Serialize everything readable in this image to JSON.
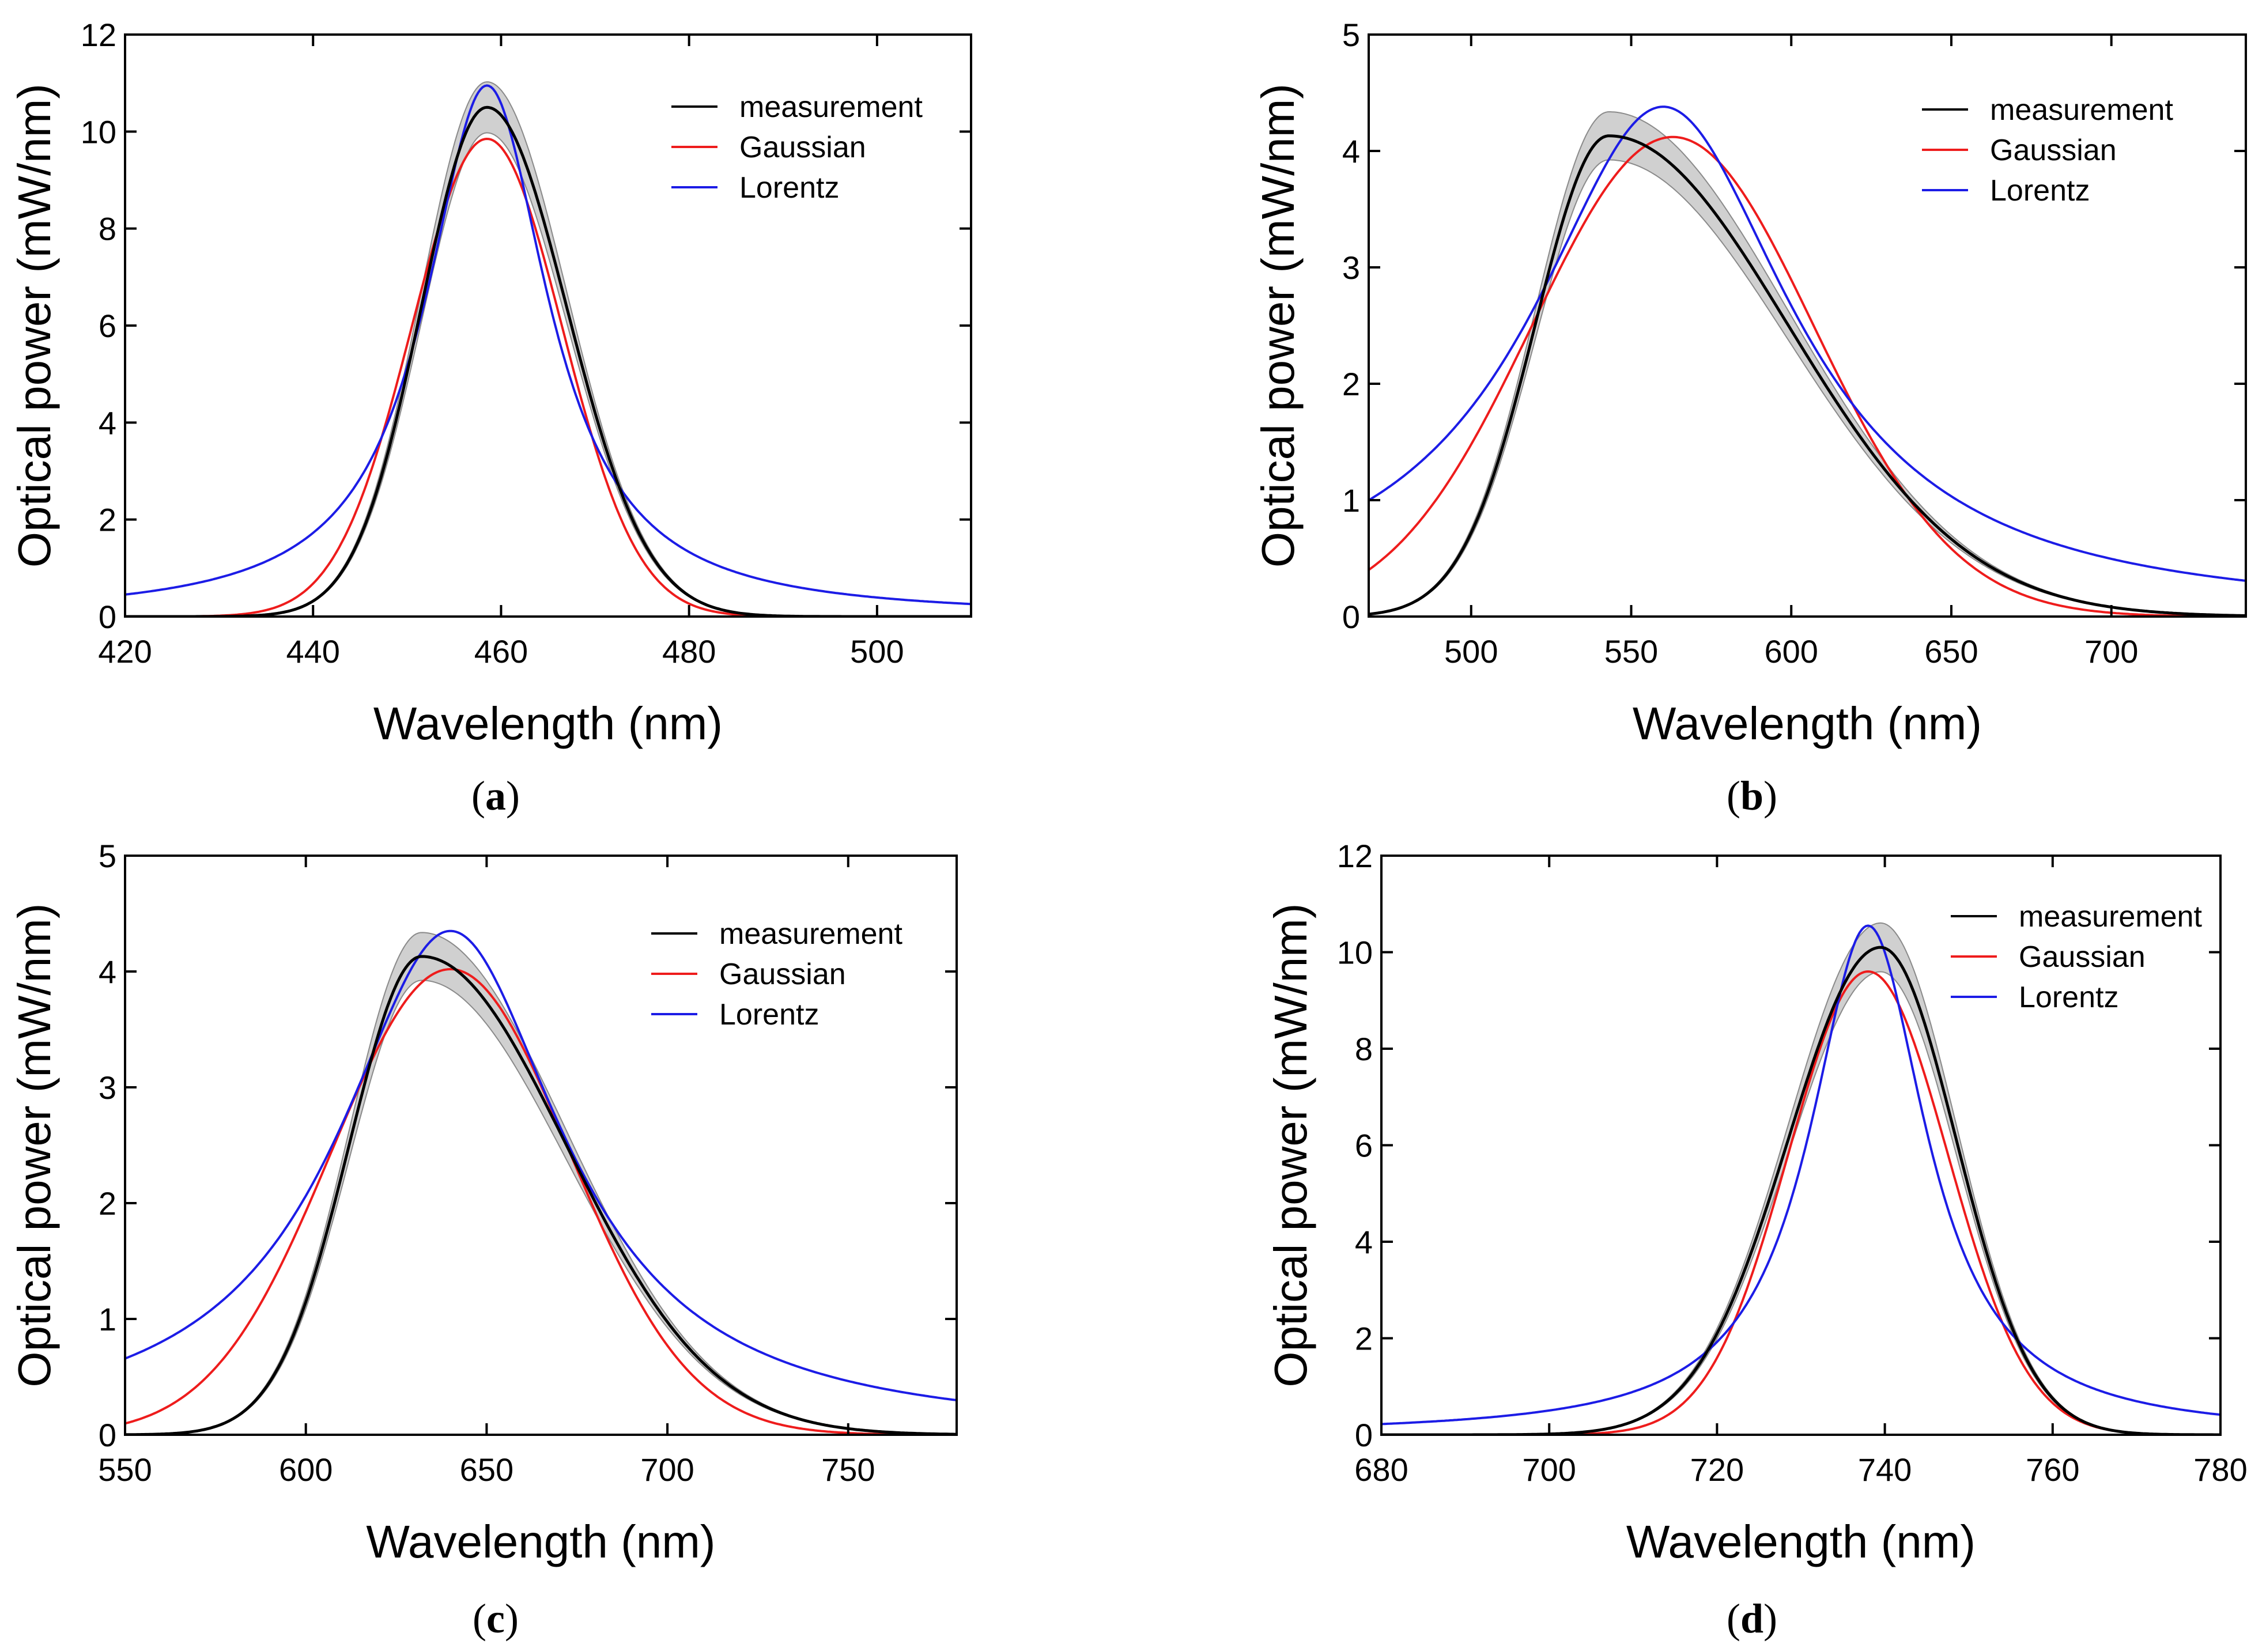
{
  "colors": {
    "measurement": "#000000",
    "gaussian": "#ee1c1c",
    "lorentz": "#1c1ce6",
    "band_fill": "#d0d0d0",
    "band_edge": "#8a8a8a"
  },
  "chart_data": [
    {
      "type": "line",
      "panel": "a",
      "label_letter": "a",
      "label_open": "(",
      "label_close": ")",
      "xlabel": "Wavelength (nm)",
      "ylabel": "Optical power (mW/nm)",
      "xlim": [
        420,
        510
      ],
      "ylim": [
        0,
        12
      ],
      "xticks": [
        420,
        440,
        460,
        480,
        500
      ],
      "yticks": [
        0,
        2,
        4,
        6,
        8,
        10,
        12
      ],
      "legend": [
        "measurement",
        "Gaussian",
        "Lorentz"
      ],
      "legend_position": "top-right",
      "series": [
        {
          "name": "measurement",
          "model": "asymmetric-gaussian",
          "peak_wavelength": 458.5,
          "peak_power": 10.5,
          "sigma_left": 7.0,
          "sigma_right": 8.5,
          "band_half_width_fraction": 0.05
        },
        {
          "name": "Gaussian",
          "model": "gaussian",
          "center": 458.5,
          "peak_power": 9.85,
          "sigma": 8.0
        },
        {
          "name": "Lorentz",
          "model": "lorentzian",
          "center": 458.5,
          "peak_power": 10.95,
          "hwhm": 8.0
        }
      ]
    },
    {
      "type": "line",
      "panel": "b",
      "label_letter": "b",
      "label_open": "(",
      "label_close": ")",
      "xlabel": "Wavelength (nm)",
      "ylabel": "Optical power (mW/nm)",
      "xlim": [
        468,
        742
      ],
      "ylim": [
        0,
        5
      ],
      "xticks": [
        500,
        550,
        600,
        650,
        700
      ],
      "yticks": [
        0,
        1,
        2,
        3,
        4,
        5
      ],
      "legend": [
        "measurement",
        "Gaussian",
        "Lorentz"
      ],
      "legend_position": "top-right",
      "series": [
        {
          "name": "measurement",
          "model": "asymmetric-gaussian",
          "peak_wavelength": 543,
          "peak_power": 4.13,
          "sigma_left": 23,
          "sigma_right": 56,
          "band_half_width_fraction": 0.05
        },
        {
          "name": "Gaussian",
          "model": "gaussian",
          "center": 563,
          "peak_power": 4.12,
          "sigma": 44
        },
        {
          "name": "Lorentz",
          "model": "lorentzian",
          "center": 560,
          "peak_power": 4.38,
          "hwhm": 50
        }
      ]
    },
    {
      "type": "line",
      "panel": "c",
      "label_letter": "c",
      "label_open": "(",
      "label_close": ")",
      "xlabel": "Wavelength (nm)",
      "ylabel": "Optical power (mW/nm)",
      "xlim": [
        550,
        780
      ],
      "ylim": [
        0,
        5
      ],
      "xticks": [
        550,
        600,
        650,
        700,
        750
      ],
      "yticks": [
        0,
        1,
        2,
        3,
        4,
        5
      ],
      "legend": [
        "measurement",
        "Gaussian",
        "Lorentz"
      ],
      "legend_position": "top-right",
      "series": [
        {
          "name": "measurement",
          "model": "asymmetric-gaussian",
          "peak_wavelength": 632,
          "peak_power": 4.13,
          "sigma_left": 20,
          "sigma_right": 40,
          "band_half_width_fraction": 0.05
        },
        {
          "name": "Gaussian",
          "model": "gaussian",
          "center": 640,
          "peak_power": 4.02,
          "sigma": 33
        },
        {
          "name": "Lorentz",
          "model": "lorentzian",
          "center": 640,
          "peak_power": 4.35,
          "hwhm": 38
        }
      ]
    },
    {
      "type": "line",
      "panel": "d",
      "label_letter": "d",
      "label_open": "(",
      "label_close": ")",
      "xlabel": "Wavelength (nm)",
      "ylabel": "Optical power (mW/nm)",
      "xlim": [
        680,
        780
      ],
      "ylim": [
        0,
        12
      ],
      "xticks": [
        680,
        700,
        720,
        740,
        760,
        780
      ],
      "yticks": [
        0,
        2,
        4,
        6,
        8,
        10,
        12
      ],
      "legend": [
        "measurement",
        "Gaussian",
        "Lorentz"
      ],
      "legend_position": "top-right",
      "series": [
        {
          "name": "measurement",
          "model": "asymmetric-gaussian",
          "peak_wavelength": 739.5,
          "peak_power": 10.1,
          "sigma_left": 11,
          "sigma_right": 9,
          "band_half_width_fraction": 0.05
        },
        {
          "name": "Gaussian",
          "model": "gaussian",
          "center": 738,
          "peak_power": 9.6,
          "sigma": 9.5
        },
        {
          "name": "Lorentz",
          "model": "lorentzian",
          "center": 738,
          "peak_power": 10.55,
          "hwhm": 8.5
        }
      ]
    }
  ]
}
